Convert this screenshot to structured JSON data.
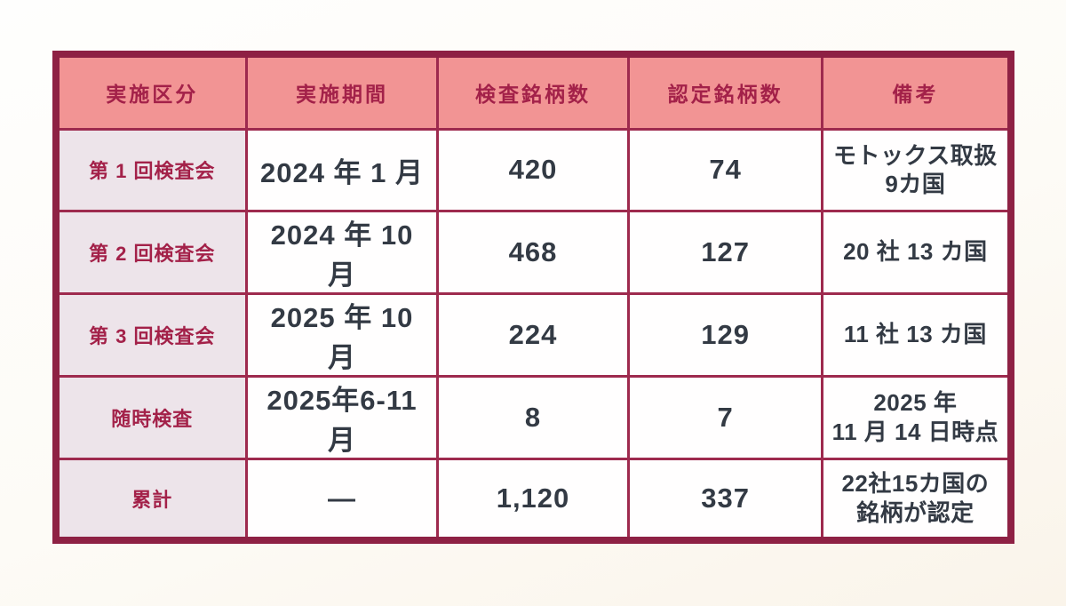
{
  "chart_data": {
    "type": "table",
    "columns": [
      "実施区分",
      "実施期間",
      "検査銘柄数",
      "認定銘柄数",
      "備考"
    ],
    "rows": [
      [
        "第 1 回検査会",
        "2024 年 1 月",
        "420",
        "74",
        "モトックス取扱\n9カ国"
      ],
      [
        "第 2 回検査会",
        "2024 年 10 月",
        "468",
        "127",
        "20 社 13 カ国"
      ],
      [
        "第 3 回検査会",
        "2025 年 10 月",
        "224",
        "129",
        "11 社 13 カ国"
      ],
      [
        "随時検査",
        "2025年6-11月",
        "8",
        "7",
        "2025 年\n11 月 14 日時点"
      ],
      [
        "累計",
        "—",
        "1,120",
        "337",
        "22社15カ国の\n銘柄が認定"
      ]
    ]
  },
  "colors": {
    "outer_border": "#8E2144",
    "grid_line": "#9E2A4E",
    "header_bg": "#F29494",
    "header_text": "#A32149",
    "row_label_bg": "#EDE4EA",
    "row_label_text": "#A32149",
    "cell_bg": "#FFFEFE",
    "body_text": "#333A44",
    "page_bg_top": "#FEFEFD",
    "page_bg_bottom": "#FAF4EA"
  }
}
